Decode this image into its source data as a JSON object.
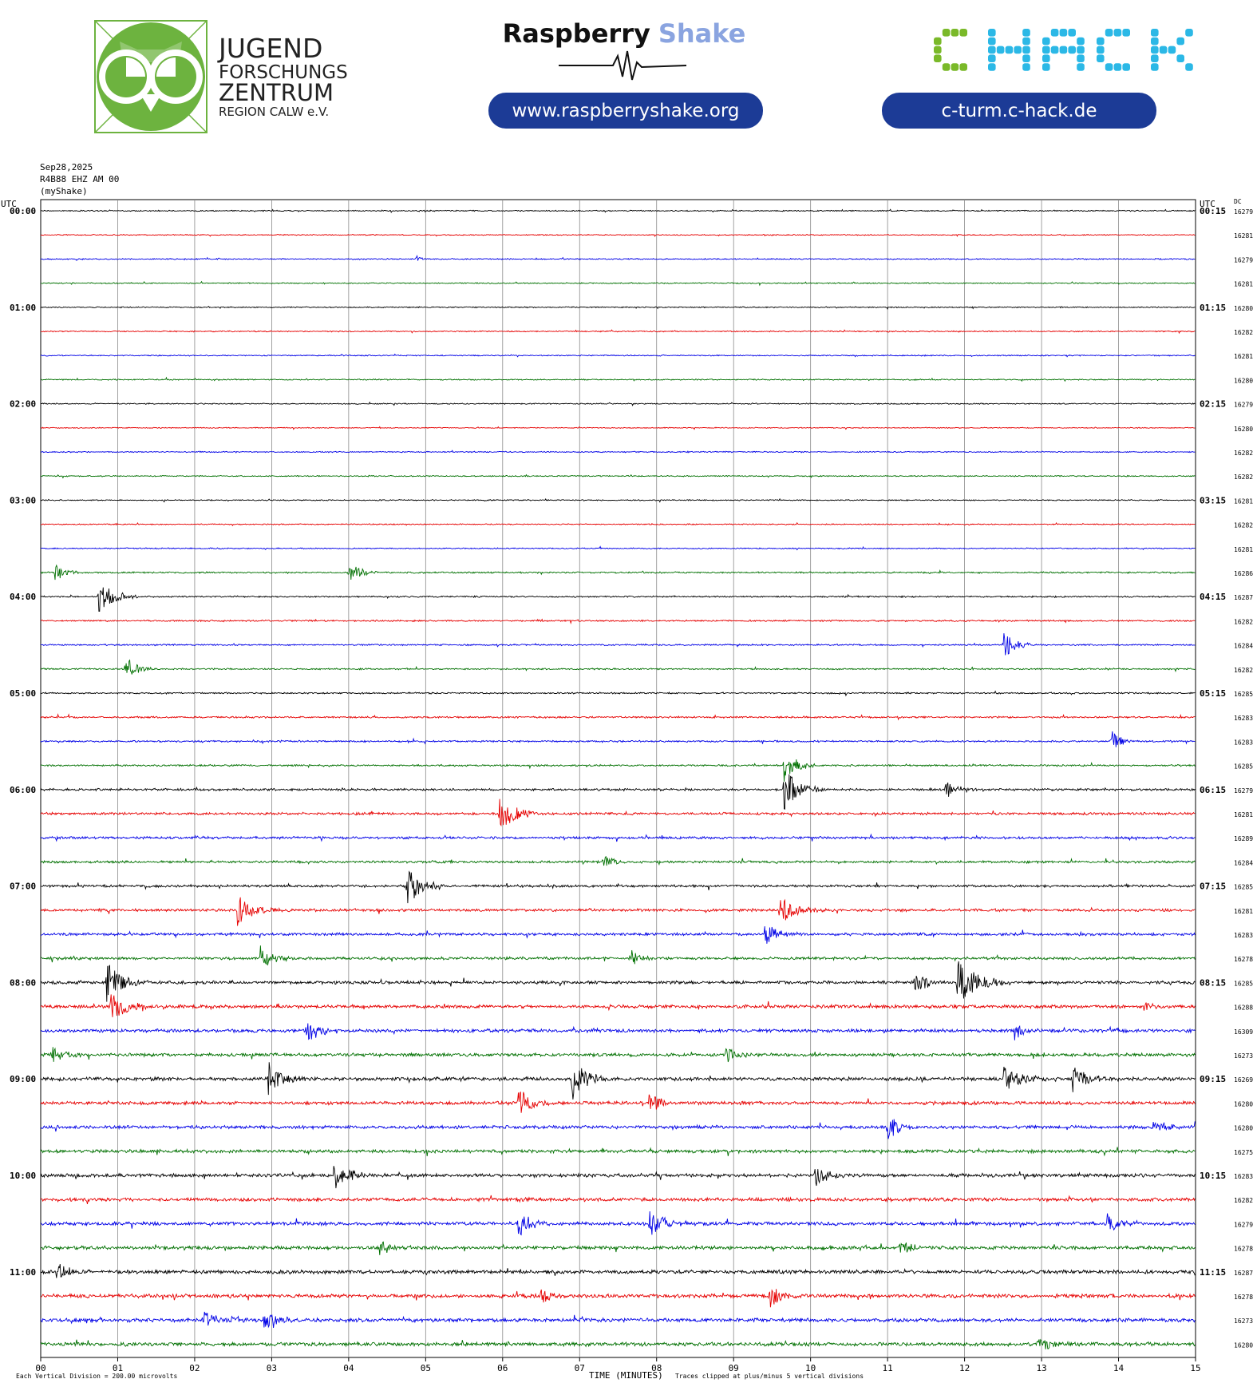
{
  "header": {
    "jfz": {
      "line1": "JUGEND",
      "line2": "FORSCHUNGS",
      "line3": "ZENTRUM",
      "line4": "REGION CALW e.V.",
      "color": "#6db33f"
    },
    "raspberry_shake": {
      "title_part1": "Raspberry",
      "title_part2": "Shake",
      "url": "www.raspberryshake.org",
      "part2_color": "#8aa4e0",
      "pill_color": "#1c3b96"
    },
    "chack": {
      "logo_text": "CHACK",
      "url": "c-turm.c-hack.de",
      "green": "#7ab929",
      "cyan": "#2bb8e6",
      "pill_color": "#1c3b96"
    }
  },
  "chart_data": {
    "type": "helicorder",
    "date": "Sep28,2025",
    "station": "R4B88 EHZ AM 00",
    "network_label": "(myShake)",
    "left_utc_label": "UTC",
    "right_utc_label": "UTC",
    "dc_label": "DC",
    "x_ticks": [
      "00",
      "01",
      "02",
      "03",
      "04",
      "05",
      "06",
      "07",
      "08",
      "09",
      "10",
      "11",
      "12",
      "13",
      "14",
      "15"
    ],
    "x_range_minutes": [
      0,
      15
    ],
    "xlabel": "TIME (MINUTES)",
    "footer_left": "Each Vertical Division =  200.00 microvolts",
    "footer_right": "Traces clipped at plus/minus 5 vertical divisions",
    "trace_colors": [
      "#000000",
      "#e60000",
      "#0000e6",
      "#007000"
    ],
    "hour_labels_left": [
      "00:00",
      "01:00",
      "02:00",
      "03:00",
      "04:00",
      "05:00",
      "06:00",
      "07:00",
      "08:00",
      "09:00",
      "10:00",
      "11:00"
    ],
    "hour_labels_right": [
      "00:15",
      "01:15",
      "02:15",
      "03:15",
      "04:15",
      "05:15",
      "06:15",
      "07:15",
      "08:15",
      "09:15",
      "10:15",
      "11:15"
    ],
    "dc_values": [
      16279,
      16281,
      16279,
      16281,
      16280,
      16282,
      16281,
      16280,
      16279,
      16280,
      16282,
      16282,
      16281,
      16282,
      16281,
      16286,
      16287,
      16282,
      16284,
      16282,
      16285,
      16283,
      16283,
      16285,
      16279,
      16281,
      16289,
      16284,
      16285,
      16281,
      16283,
      16278,
      16285,
      16288,
      16309,
      16273,
      16269,
      16280,
      16280,
      16275,
      16283,
      16282,
      16279,
      16278,
      16287,
      16278,
      16273,
      16280
    ],
    "trace_noise": [
      0.6,
      0.5,
      0.6,
      0.6,
      0.6,
      0.6,
      0.6,
      0.6,
      0.6,
      0.5,
      0.6,
      0.6,
      0.6,
      0.6,
      0.6,
      0.8,
      0.8,
      0.8,
      0.8,
      0.8,
      0.8,
      0.9,
      0.9,
      0.9,
      1.2,
      1.3,
      1.3,
      1.2,
      1.3,
      1.4,
      1.4,
      1.4,
      1.6,
      1.7,
      1.7,
      1.7,
      1.8,
      1.7,
      1.7,
      1.7,
      1.8,
      1.8,
      1.8,
      1.8,
      1.9,
      1.9,
      1.9,
      1.9
    ],
    "events": [
      {
        "trace": 2,
        "minute": 4.88,
        "amplitude": 5,
        "duration": 0.05
      },
      {
        "trace": 15,
        "minute": 0.18,
        "amplitude": 12,
        "duration": 0.12
      },
      {
        "trace": 15,
        "minute": 4.0,
        "amplitude": 13,
        "duration": 0.15
      },
      {
        "trace": 16,
        "minute": 0.75,
        "amplitude": 22,
        "duration": 0.18
      },
      {
        "trace": 18,
        "minute": 12.5,
        "amplitude": 20,
        "duration": 0.15
      },
      {
        "trace": 19,
        "minute": 1.1,
        "amplitude": 16,
        "duration": 0.15
      },
      {
        "trace": 22,
        "minute": 13.9,
        "amplitude": 16,
        "duration": 0.12
      },
      {
        "trace": 23,
        "minute": 9.65,
        "amplitude": 22,
        "duration": 0.15
      },
      {
        "trace": 24,
        "minute": 9.65,
        "amplitude": 30,
        "duration": 0.18
      },
      {
        "trace": 24,
        "minute": 11.75,
        "amplitude": 12,
        "duration": 0.15
      },
      {
        "trace": 25,
        "minute": 5.95,
        "amplitude": 28,
        "duration": 0.18
      },
      {
        "trace": 28,
        "minute": 4.75,
        "amplitude": 28,
        "duration": 0.18
      },
      {
        "trace": 27,
        "minute": 7.3,
        "amplitude": 12,
        "duration": 0.12
      },
      {
        "trace": 29,
        "minute": 2.55,
        "amplitude": 20,
        "duration": 0.2
      },
      {
        "trace": 29,
        "minute": 9.6,
        "amplitude": 20,
        "duration": 0.2
      },
      {
        "trace": 30,
        "minute": 9.4,
        "amplitude": 22,
        "duration": 0.15
      },
      {
        "trace": 31,
        "minute": 2.85,
        "amplitude": 18,
        "duration": 0.15
      },
      {
        "trace": 31,
        "minute": 7.65,
        "amplitude": 12,
        "duration": 0.12
      },
      {
        "trace": 32,
        "minute": 0.85,
        "amplitude": 26,
        "duration": 0.2
      },
      {
        "trace": 32,
        "minute": 11.9,
        "amplitude": 30,
        "duration": 0.25
      },
      {
        "trace": 32,
        "minute": 11.35,
        "amplitude": 18,
        "duration": 0.15
      },
      {
        "trace": 33,
        "minute": 0.9,
        "amplitude": 22,
        "duration": 0.2
      },
      {
        "trace": 33,
        "minute": 14.35,
        "amplitude": 8,
        "duration": 0.1
      },
      {
        "trace": 34,
        "minute": 3.45,
        "amplitude": 16,
        "duration": 0.15
      },
      {
        "trace": 34,
        "minute": 12.65,
        "amplitude": 12,
        "duration": 0.12
      },
      {
        "trace": 35,
        "minute": 0.15,
        "amplitude": 14,
        "duration": 0.15
      },
      {
        "trace": 35,
        "minute": 8.9,
        "amplitude": 12,
        "duration": 0.12
      },
      {
        "trace": 36,
        "minute": 2.95,
        "amplitude": 22,
        "duration": 0.18
      },
      {
        "trace": 36,
        "minute": 6.9,
        "amplitude": 26,
        "duration": 0.18
      },
      {
        "trace": 36,
        "minute": 12.5,
        "amplitude": 22,
        "duration": 0.2
      },
      {
        "trace": 36,
        "minute": 13.4,
        "amplitude": 18,
        "duration": 0.18
      },
      {
        "trace": 37,
        "minute": 6.2,
        "amplitude": 22,
        "duration": 0.15
      },
      {
        "trace": 37,
        "minute": 7.9,
        "amplitude": 14,
        "duration": 0.15
      },
      {
        "trace": 38,
        "minute": 11.0,
        "amplitude": 18,
        "duration": 0.15
      },
      {
        "trace": 38,
        "minute": 14.45,
        "amplitude": 8,
        "duration": 0.2
      },
      {
        "trace": 40,
        "minute": 3.8,
        "amplitude": 20,
        "duration": 0.18
      },
      {
        "trace": 40,
        "minute": 10.05,
        "amplitude": 16,
        "duration": 0.15
      },
      {
        "trace": 42,
        "minute": 6.2,
        "amplitude": 18,
        "duration": 0.15
      },
      {
        "trace": 42,
        "minute": 7.9,
        "amplitude": 20,
        "duration": 0.2
      },
      {
        "trace": 42,
        "minute": 13.85,
        "amplitude": 14,
        "duration": 0.15
      },
      {
        "trace": 43,
        "minute": 4.4,
        "amplitude": 10,
        "duration": 0.15
      },
      {
        "trace": 43,
        "minute": 11.15,
        "amplitude": 12,
        "duration": 0.15
      },
      {
        "trace": 44,
        "minute": 0.2,
        "amplitude": 12,
        "duration": 0.15
      },
      {
        "trace": 45,
        "minute": 9.45,
        "amplitude": 18,
        "duration": 0.15
      },
      {
        "trace": 45,
        "minute": 6.5,
        "amplitude": 12,
        "duration": 0.12
      },
      {
        "trace": 46,
        "minute": 2.1,
        "amplitude": 14,
        "duration": 0.25
      },
      {
        "trace": 46,
        "minute": 2.9,
        "amplitude": 14,
        "duration": 0.15
      },
      {
        "trace": 47,
        "minute": 12.95,
        "amplitude": 12,
        "duration": 0.15
      }
    ]
  }
}
